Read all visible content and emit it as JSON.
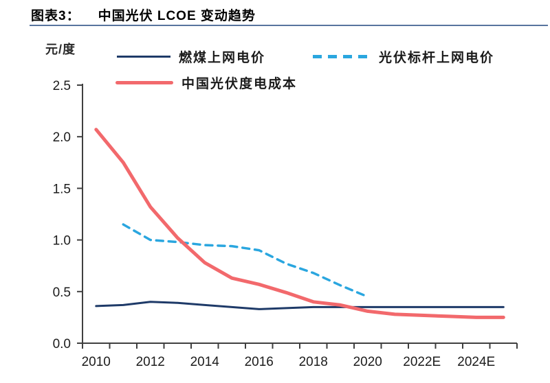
{
  "header": {
    "figure_label": "图表3：",
    "title": "中国光伏 LCOE 变动趋势"
  },
  "chart_data": {
    "type": "line",
    "title": "中国光伏 LCOE 变动趋势",
    "unit_label": "元/度",
    "legend_position": "top",
    "grid": false,
    "ylim": [
      0,
      2.5
    ],
    "y_ticks": [
      "0.0",
      "0.5",
      "1.0",
      "1.5",
      "2.0",
      "2.5"
    ],
    "x_years": [
      2010,
      2011,
      2012,
      2013,
      2014,
      2015,
      2016,
      2017,
      2018,
      2019,
      2020,
      2021,
      2022,
      2023,
      2024,
      2025
    ],
    "x_tick_labels": [
      "2010",
      "2012",
      "2014",
      "2016",
      "2018",
      "2020",
      "2022E",
      "2024E"
    ],
    "axis_color": "#3f3f3f",
    "tick_label_color": "#1c1c1c",
    "series": [
      {
        "id": "coal-benchmark",
        "name": "燃煤上网电价",
        "style": "solid",
        "color": "#1e3a68",
        "line_width": 3,
        "start_year": 2010,
        "values": [
          0.36,
          0.37,
          0.4,
          0.39,
          0.37,
          0.35,
          0.33,
          0.34,
          0.35,
          0.35,
          0.35,
          0.35,
          0.35,
          0.35,
          0.35,
          0.35
        ]
      },
      {
        "id": "pv-feed-in-tariff",
        "name": "光伏标杆上网电价",
        "style": "dashed",
        "color": "#2aa6df",
        "line_width": 3.5,
        "start_year": 2011,
        "values": [
          1.15,
          1.0,
          0.98,
          0.95,
          0.94,
          0.9,
          0.77,
          0.68,
          0.56,
          0.45
        ]
      },
      {
        "id": "pv-lcoe",
        "name": "中国光伏度电成本",
        "style": "solid",
        "color": "#f2696c",
        "line_width": 5,
        "start_year": 2010,
        "values": [
          2.07,
          1.75,
          1.32,
          1.02,
          0.78,
          0.63,
          0.57,
          0.49,
          0.4,
          0.37,
          0.31,
          0.28,
          0.27,
          0.26,
          0.25,
          0.25
        ]
      }
    ]
  }
}
